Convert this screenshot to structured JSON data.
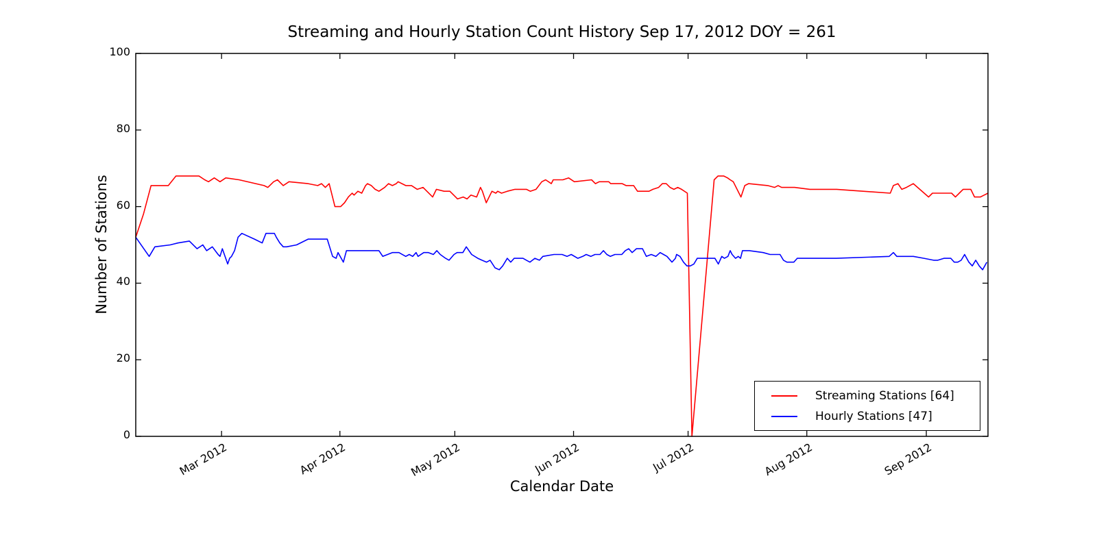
{
  "figure": {
    "title": "Streaming and Hourly Station Count History Sep 17, 2012 DOY = 261",
    "background": "#ffffff",
    "axis_color": "#000000"
  },
  "chart_data": {
    "type": "line",
    "title": "Streaming and Hourly Station Count History Sep 17, 2012 DOY = 261",
    "xlabel": "Calendar Date",
    "ylabel": "Number of Stations",
    "grid": false,
    "legend_position": "lower right",
    "ylim": [
      0,
      100
    ],
    "y_ticks": [
      0,
      20,
      40,
      60,
      80,
      100
    ],
    "x_domain_days": [
      0,
      222.5
    ],
    "x_ticks": {
      "days": [
        22.4,
        53.3,
        83.3,
        114.3,
        144.2,
        175.2,
        206.4
      ],
      "labels": [
        "Mar 2012",
        "Apr 2012",
        "May 2012",
        "Jun 2012",
        "Jul 2012",
        "Aug 2012",
        "Sep 2012"
      ]
    },
    "series": [
      {
        "name": "Streaming Stations [64]",
        "color": "#ff0000",
        "points": [
          [
            0,
            52
          ],
          [
            2,
            58
          ],
          [
            4,
            65.5
          ],
          [
            8.5,
            65.5
          ],
          [
            10.5,
            68
          ],
          [
            16.5,
            68
          ],
          [
            18,
            67
          ],
          [
            19,
            66.5
          ],
          [
            20.5,
            67.5
          ],
          [
            22,
            66.5
          ],
          [
            23.5,
            67.5
          ],
          [
            27,
            67
          ],
          [
            33.5,
            65.5
          ],
          [
            34.5,
            65
          ],
          [
            36,
            66.5
          ],
          [
            37,
            67
          ],
          [
            38.5,
            65.5
          ],
          [
            40,
            66.5
          ],
          [
            45,
            66
          ],
          [
            47.5,
            65.5
          ],
          [
            48.5,
            66
          ],
          [
            49.5,
            65
          ],
          [
            50.5,
            66
          ],
          [
            51,
            64
          ],
          [
            52,
            60
          ],
          [
            53.5,
            60
          ],
          [
            54.5,
            61
          ],
          [
            55.5,
            62.5
          ],
          [
            56.5,
            63.5
          ],
          [
            57,
            63
          ],
          [
            58,
            64
          ],
          [
            59,
            63.5
          ],
          [
            60,
            65.5
          ],
          [
            60.5,
            66
          ],
          [
            61.5,
            65.5
          ],
          [
            62.5,
            64.5
          ],
          [
            63.5,
            64
          ],
          [
            65,
            65
          ],
          [
            66,
            66
          ],
          [
            67,
            65.5
          ],
          [
            68,
            66
          ],
          [
            68.5,
            66.5
          ],
          [
            69.5,
            66
          ],
          [
            70.5,
            65.5
          ],
          [
            72,
            65.5
          ],
          [
            73.5,
            64.5
          ],
          [
            75,
            65
          ],
          [
            77.5,
            62.5
          ],
          [
            78.5,
            64.5
          ],
          [
            80.5,
            64
          ],
          [
            82,
            64
          ],
          [
            83.5,
            62.5
          ],
          [
            84,
            62
          ],
          [
            85.5,
            62.5
          ],
          [
            86.5,
            62
          ],
          [
            87.5,
            63
          ],
          [
            89,
            62.5
          ],
          [
            90,
            65
          ],
          [
            90.5,
            64
          ],
          [
            91.5,
            61
          ],
          [
            93,
            64
          ],
          [
            94,
            63.5
          ],
          [
            94.5,
            64
          ],
          [
            95.5,
            63.5
          ],
          [
            97,
            64
          ],
          [
            99,
            64.5
          ],
          [
            102,
            64.5
          ],
          [
            103,
            64
          ],
          [
            104.5,
            64.5
          ],
          [
            106,
            66.5
          ],
          [
            107,
            67
          ],
          [
            108.5,
            66
          ],
          [
            109,
            67
          ],
          [
            111.5,
            67
          ],
          [
            113,
            67.5
          ],
          [
            114.5,
            66.5
          ],
          [
            119,
            67
          ],
          [
            120,
            66
          ],
          [
            121,
            66.5
          ],
          [
            123.5,
            66.5
          ],
          [
            124,
            66
          ],
          [
            127,
            66
          ],
          [
            128,
            65.5
          ],
          [
            130,
            65.5
          ],
          [
            131,
            64
          ],
          [
            134,
            64
          ],
          [
            135,
            64.5
          ],
          [
            136.5,
            65
          ],
          [
            137.5,
            66
          ],
          [
            138.5,
            66
          ],
          [
            139.5,
            65
          ],
          [
            140.5,
            64.5
          ],
          [
            141.5,
            65
          ],
          [
            142.5,
            64.5
          ],
          [
            144,
            63.5
          ],
          [
            145.2,
            0
          ],
          [
            151,
            67
          ],
          [
            152,
            68
          ],
          [
            153.5,
            68
          ],
          [
            154.5,
            67.5
          ],
          [
            155.2,
            67
          ],
          [
            156,
            66.5
          ],
          [
            158,
            62.5
          ],
          [
            159,
            65.5
          ],
          [
            160,
            66
          ],
          [
            165,
            65.5
          ],
          [
            166.8,
            65
          ],
          [
            167.7,
            65.5
          ],
          [
            168.6,
            65
          ],
          [
            172,
            65
          ],
          [
            176,
            64.5
          ],
          [
            183,
            64.5
          ],
          [
            197,
            63.5
          ],
          [
            197.8,
            65.5
          ],
          [
            199,
            66
          ],
          [
            200,
            64.5
          ],
          [
            201.2,
            65
          ],
          [
            203,
            66
          ],
          [
            207,
            62.5
          ],
          [
            208,
            63.5
          ],
          [
            213,
            63.5
          ],
          [
            214,
            62.5
          ],
          [
            215,
            63.5
          ],
          [
            216,
            64.5
          ],
          [
            218,
            64.5
          ],
          [
            219,
            62.5
          ],
          [
            220.5,
            62.5
          ],
          [
            221.5,
            63
          ],
          [
            222.5,
            63.5
          ]
        ]
      },
      {
        "name": "Hourly Stations [47]",
        "color": "#0000ff",
        "points": [
          [
            0,
            52
          ],
          [
            3.5,
            47
          ],
          [
            5,
            49.5
          ],
          [
            9,
            50
          ],
          [
            11,
            50.5
          ],
          [
            14,
            51
          ],
          [
            16,
            49
          ],
          [
            17.5,
            50
          ],
          [
            18.5,
            48.5
          ],
          [
            20,
            49.5
          ],
          [
            21.5,
            47.5
          ],
          [
            22,
            47
          ],
          [
            22.6,
            49
          ],
          [
            24,
            45
          ],
          [
            24.5,
            46.5
          ],
          [
            25,
            47
          ],
          [
            25.8,
            48.5
          ],
          [
            26.7,
            52
          ],
          [
            27.7,
            53
          ],
          [
            31,
            51.5
          ],
          [
            33,
            50.5
          ],
          [
            34,
            53
          ],
          [
            36.2,
            53
          ],
          [
            36.7,
            52
          ],
          [
            37.6,
            50.5
          ],
          [
            38.5,
            49.5
          ],
          [
            39.4,
            49.5
          ],
          [
            42,
            50
          ],
          [
            45,
            51.5
          ],
          [
            47.3,
            51.5
          ],
          [
            50,
            51.5
          ],
          [
            51.4,
            47
          ],
          [
            52.3,
            46.5
          ],
          [
            52.8,
            48
          ],
          [
            54.2,
            45.5
          ],
          [
            55,
            48.5
          ],
          [
            63.5,
            48.5
          ],
          [
            64.5,
            47
          ],
          [
            67,
            48
          ],
          [
            68.7,
            48
          ],
          [
            70.5,
            47
          ],
          [
            71.4,
            47.5
          ],
          [
            72.3,
            47
          ],
          [
            73.2,
            48
          ],
          [
            73.7,
            47
          ],
          [
            75.2,
            48
          ],
          [
            76.4,
            48
          ],
          [
            77.7,
            47.5
          ],
          [
            78.6,
            48.5
          ],
          [
            79.5,
            47.5
          ],
          [
            80.9,
            46.5
          ],
          [
            81.8,
            46
          ],
          [
            83.1,
            47.5
          ],
          [
            83.9,
            48
          ],
          [
            85.4,
            48
          ],
          [
            86.3,
            49.5
          ],
          [
            87.7,
            47.5
          ],
          [
            89.3,
            46.5
          ],
          [
            90.4,
            46
          ],
          [
            91.6,
            45.5
          ],
          [
            92.5,
            46
          ],
          [
            93.8,
            44
          ],
          [
            94.9,
            43.5
          ],
          [
            95.8,
            44.5
          ],
          [
            97,
            46.5
          ],
          [
            97.9,
            45.5
          ],
          [
            98.8,
            46.5
          ],
          [
            101.1,
            46.5
          ],
          [
            102,
            46
          ],
          [
            102.9,
            45.5
          ],
          [
            104.2,
            46.5
          ],
          [
            105.4,
            46
          ],
          [
            106.3,
            47
          ],
          [
            109.2,
            47.5
          ],
          [
            111.3,
            47.5
          ],
          [
            112.6,
            47
          ],
          [
            113.7,
            47.5
          ],
          [
            115.4,
            46.5
          ],
          [
            116.7,
            47
          ],
          [
            117.6,
            47.5
          ],
          [
            118.8,
            47
          ],
          [
            119.9,
            47.5
          ],
          [
            121.2,
            47.5
          ],
          [
            122.1,
            48.5
          ],
          [
            123,
            47.5
          ],
          [
            123.9,
            47
          ],
          [
            125.1,
            47.5
          ],
          [
            126.9,
            47.5
          ],
          [
            127.8,
            48.5
          ],
          [
            128.7,
            49
          ],
          [
            129.6,
            48
          ],
          [
            130.7,
            49
          ],
          [
            132.3,
            49
          ],
          [
            133.3,
            47
          ],
          [
            134.6,
            47.5
          ],
          [
            135.8,
            47
          ],
          [
            136.9,
            48
          ],
          [
            137.8,
            47.5
          ],
          [
            138.7,
            47
          ],
          [
            140,
            45.5
          ],
          [
            140.9,
            46.5
          ],
          [
            141.2,
            47.5
          ],
          [
            142.1,
            47
          ],
          [
            143,
            45.5
          ],
          [
            143.9,
            44.5
          ],
          [
            144.8,
            44.5
          ],
          [
            145.7,
            45
          ],
          [
            146.6,
            46.5
          ],
          [
            151.2,
            46.5
          ],
          [
            152.1,
            45
          ],
          [
            153,
            47
          ],
          [
            153.7,
            46.5
          ],
          [
            154.6,
            47
          ],
          [
            155.2,
            48.5
          ],
          [
            155.7,
            47.5
          ],
          [
            156.6,
            46.5
          ],
          [
            157.3,
            47
          ],
          [
            157.9,
            46.5
          ],
          [
            158.4,
            48.5
          ],
          [
            159.3,
            48.5
          ],
          [
            160.2,
            48.5
          ],
          [
            163.8,
            48
          ],
          [
            165.6,
            47.5
          ],
          [
            167.3,
            47.5
          ],
          [
            168.2,
            47.5
          ],
          [
            169.1,
            46
          ],
          [
            170,
            45.5
          ],
          [
            171.8,
            45.5
          ],
          [
            172.7,
            46.5
          ],
          [
            175.8,
            46.5
          ],
          [
            182.9,
            46.5
          ],
          [
            196.7,
            47
          ],
          [
            197.8,
            48
          ],
          [
            198.7,
            47
          ],
          [
            203,
            47
          ],
          [
            205.8,
            46.5
          ],
          [
            208.3,
            46
          ],
          [
            209.4,
            46
          ],
          [
            211,
            46.5
          ],
          [
            211.9,
            46.5
          ],
          [
            212.8,
            46.5
          ],
          [
            213.7,
            45.5
          ],
          [
            214.6,
            45.5
          ],
          [
            215.5,
            46
          ],
          [
            216.4,
            47.5
          ],
          [
            217.5,
            45.5
          ],
          [
            218.4,
            44.5
          ],
          [
            219.3,
            46
          ],
          [
            220.2,
            44.5
          ],
          [
            221.1,
            43.5
          ],
          [
            222.2,
            45.5
          ]
        ]
      }
    ]
  }
}
